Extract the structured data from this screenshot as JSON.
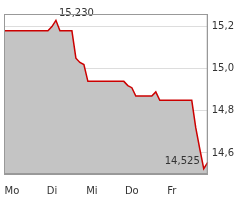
{
  "chart_data": {
    "type": "line",
    "categories": [
      null,
      null,
      "Mo",
      null,
      null,
      null,
      null,
      null,
      null,
      null,
      null,
      null,
      "Di",
      null,
      null,
      null,
      null,
      null,
      null,
      null,
      null,
      null,
      "Mi",
      null,
      null,
      null,
      null,
      null,
      null,
      null,
      null,
      null,
      "Do",
      null,
      null,
      null,
      null,
      null,
      null,
      null,
      null,
      null,
      "Fr",
      null,
      null,
      null,
      null,
      null,
      null,
      null,
      null,
      null
    ],
    "values": [
      15.18,
      15.18,
      15.18,
      15.18,
      15.18,
      15.18,
      15.18,
      15.18,
      15.18,
      15.18,
      15.18,
      15.18,
      15.2,
      15.23,
      15.18,
      15.18,
      15.18,
      15.18,
      15.05,
      15.03,
      15.02,
      14.94,
      14.94,
      14.94,
      14.94,
      14.94,
      14.94,
      14.94,
      14.94,
      14.94,
      14.94,
      14.92,
      14.91,
      14.87,
      14.87,
      14.87,
      14.87,
      14.87,
      14.89,
      14.85,
      14.85,
      14.85,
      14.85,
      14.85,
      14.85,
      14.85,
      14.85,
      14.85,
      14.72,
      14.62,
      14.525,
      14.555
    ],
    "color": "#cc0000",
    "ylim": [
      14.5,
      15.26
    ],
    "yticks": [
      {
        "value": 14.6,
        "label": "14,6"
      },
      {
        "value": 14.8,
        "label": "14,8"
      },
      {
        "value": 15.0,
        "label": "15,0"
      },
      {
        "value": 15.2,
        "label": "15,2"
      }
    ],
    "annotations": [
      {
        "label": "15,230",
        "value": 15.23,
        "index": 13
      },
      {
        "label": "14,525",
        "value": 14.525,
        "index": 50
      }
    ],
    "grid": true
  }
}
